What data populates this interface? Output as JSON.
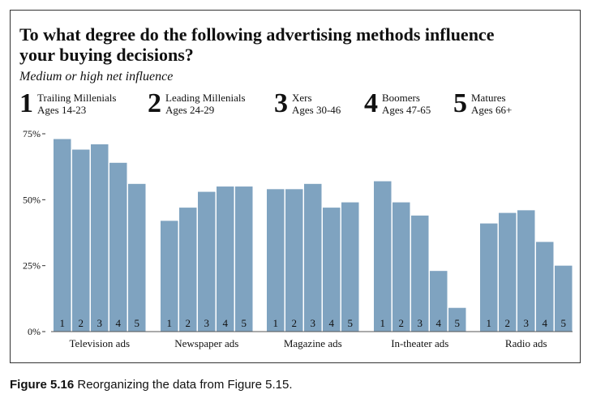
{
  "chart_data": {
    "type": "bar",
    "title": "To what degree do the following advertising methods influence your buying decisions?",
    "subtitle": "Medium or high net influence",
    "categories": [
      "Television ads",
      "Newspaper ads",
      "Magazine ads",
      "In-theater ads",
      "Radio ads"
    ],
    "groups": [
      {
        "number": "1",
        "name": "Trailing Millenials",
        "ages": "Ages 14-23"
      },
      {
        "number": "2",
        "name": "Leading Millenials",
        "ages": "Ages 24-29"
      },
      {
        "number": "3",
        "name": "Xers",
        "ages": "Ages 30-46"
      },
      {
        "number": "4",
        "name": "Boomers",
        "ages": "Ages 47-65"
      },
      {
        "number": "5",
        "name": "Matures",
        "ages": "Ages 66+"
      }
    ],
    "values": [
      [
        73,
        69,
        71,
        64,
        56
      ],
      [
        42,
        47,
        53,
        55,
        55
      ],
      [
        54,
        54,
        56,
        47,
        49
      ],
      [
        57,
        49,
        44,
        23,
        9
      ],
      [
        41,
        45,
        46,
        34,
        25
      ]
    ],
    "ylim": [
      0,
      75
    ],
    "yticks": [
      0,
      25,
      50,
      75
    ],
    "ytick_labels": [
      "0%",
      "25%",
      "50%",
      "75%"
    ],
    "bar_color": "#7fa3c0",
    "grid": false
  },
  "caption": {
    "label": "Figure 5.16",
    "text": "Reorganizing the data from Figure 5.15."
  }
}
